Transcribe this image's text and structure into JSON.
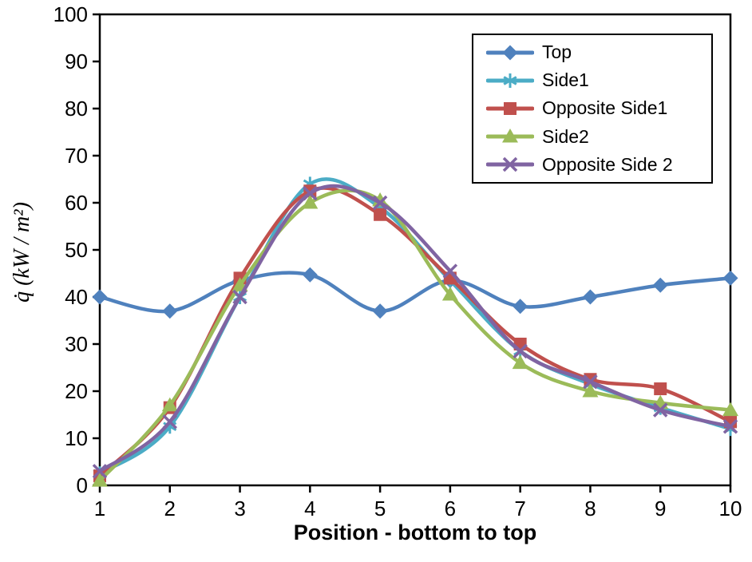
{
  "chart_data": {
    "type": "line",
    "title": "",
    "xlabel": "Position - bottom to top",
    "ylabel": "q̇ (kW / m²)",
    "x": [
      1,
      2,
      3,
      4,
      5,
      6,
      7,
      8,
      9,
      10
    ],
    "xlim": [
      1,
      10
    ],
    "ylim": [
      0,
      100
    ],
    "y_ticks": [
      0,
      10,
      20,
      30,
      40,
      50,
      60,
      70,
      80,
      90,
      100
    ],
    "grid": false,
    "line_style": "smooth",
    "legend_position": "top-right-inside",
    "axis_color": "#000000",
    "background_color": "#ffffff",
    "series": [
      {
        "name": "Top",
        "color": "#4F81BD",
        "marker": "diamond",
        "values": [
          40,
          37,
          43.5,
          44.7,
          37,
          43.5,
          38,
          40,
          42.5,
          44
        ]
      },
      {
        "name": "Side1",
        "color": "#4BACC6",
        "marker": "asterisk",
        "values": [
          2.5,
          12.5,
          40,
          64,
          59,
          43.5,
          28.5,
          21.5,
          16.5,
          12
        ]
      },
      {
        "name": "Opposite Side1",
        "color": "#C0504D",
        "marker": "square",
        "values": [
          2,
          16.5,
          44,
          62.5,
          57.5,
          44,
          30,
          22.5,
          20.5,
          13.5
        ]
      },
      {
        "name": "Side2",
        "color": "#9BBB59",
        "marker": "triangle",
        "values": [
          1,
          17,
          42.5,
          60,
          60.5,
          40.5,
          26,
          20,
          17.5,
          16
        ]
      },
      {
        "name": "Opposite Side 2",
        "color": "#8064A2",
        "marker": "x",
        "values": [
          3,
          13.5,
          40,
          62,
          60,
          45.5,
          28.5,
          22,
          16,
          12.5
        ]
      }
    ]
  }
}
